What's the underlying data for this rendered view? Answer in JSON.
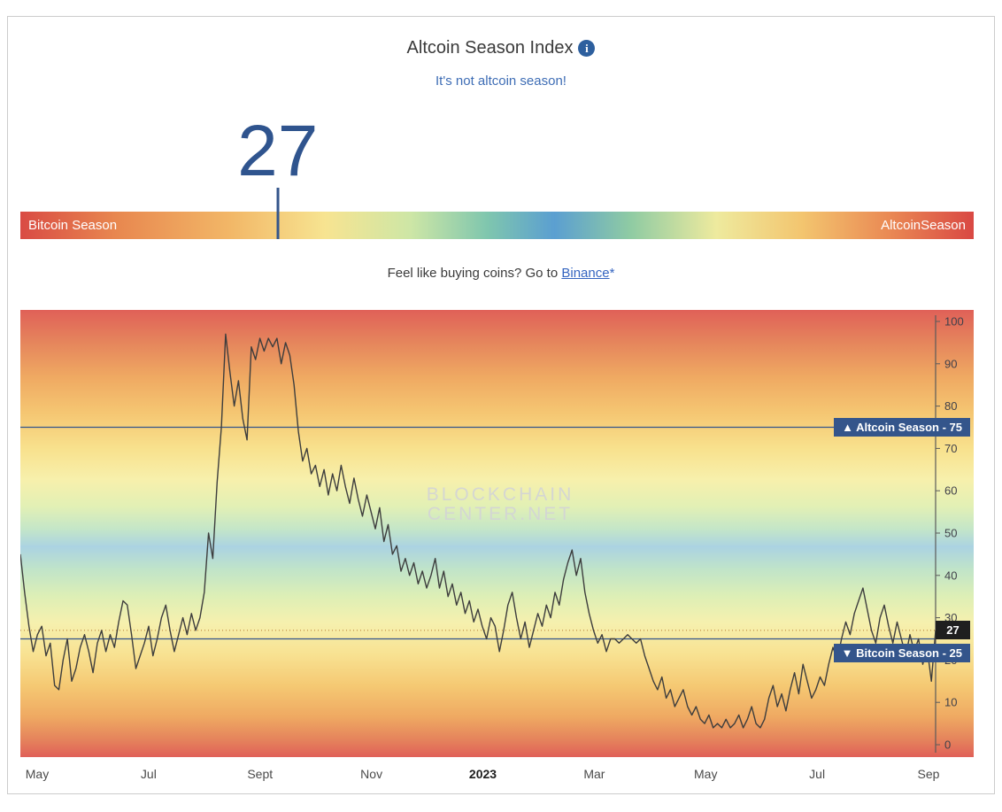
{
  "page": {
    "title": "Altcoin Season Index",
    "info_icon_glyph": "i",
    "subtitle": "It's not altcoin season!",
    "index_value": "27",
    "season_bar": {
      "left_label": "Bitcoin Season",
      "right_label": "AltcoinSeason",
      "marker_percent": 27
    },
    "cta": {
      "prefix": "Feel like buying coins? Go to ",
      "link_label": "Binance",
      "suffix": "*"
    },
    "watermark_line1": "BLOCKCHAIN",
    "watermark_line2": "CENTER.NET"
  },
  "colors": {
    "accent_dark_blue": "#34558b",
    "subtitle_blue": "#3e6db5",
    "link_blue": "#3565c0",
    "current_badge_bg": "#1f1f1f",
    "line_color": "#3d3d3d"
  },
  "chart_data": {
    "type": "line",
    "title": "Altcoin Season Index",
    "ylim": [
      0,
      100
    ],
    "y_ticks": [
      0,
      10,
      20,
      30,
      40,
      50,
      60,
      70,
      80,
      90,
      100
    ],
    "x_tick_labels": [
      "May",
      "Jul",
      "Sept",
      "Nov",
      "2023",
      "Mar",
      "May",
      "Jul",
      "Sep"
    ],
    "grid": false,
    "legend": "none",
    "background": "vertical rainbow gradient: red(100) - orange - yellow - green - blue(~47) - green - yellow - orange - red(0)",
    "thresholds": [
      {
        "value": 75,
        "text": "▲ Altcoin Season - 75"
      },
      {
        "value": 25,
        "text": "▼ Bitcoin Season - 25"
      }
    ],
    "current_value": 27,
    "series": [
      {
        "name": "Altcoin Season Index",
        "x_start": "2022-04-22",
        "x_end": "2023-09-02",
        "sampling": "values estimated from chart, evenly spaced in time between x_start and x_end",
        "values": [
          45,
          36,
          28,
          22,
          26,
          28,
          21,
          24,
          14,
          13,
          20,
          25,
          15,
          18,
          23,
          26,
          22,
          17,
          24,
          27,
          22,
          26,
          23,
          29,
          34,
          33,
          26,
          18,
          21,
          24,
          28,
          21,
          25,
          30,
          33,
          27,
          22,
          26,
          30,
          26,
          31,
          27,
          30,
          36,
          50,
          44,
          62,
          75,
          97,
          88,
          80,
          86,
          77,
          72,
          94,
          91,
          96,
          93,
          96,
          94,
          96,
          90,
          95,
          92,
          85,
          74,
          67,
          70,
          64,
          66,
          61,
          65,
          59,
          64,
          60,
          66,
          61,
          57,
          63,
          58,
          54,
          59,
          55,
          51,
          56,
          48,
          52,
          45,
          47,
          41,
          44,
          40,
          43,
          38,
          41,
          37,
          40,
          44,
          37,
          41,
          35,
          38,
          33,
          36,
          31,
          34,
          29,
          32,
          28,
          25,
          30,
          28,
          22,
          27,
          33,
          36,
          30,
          25,
          29,
          23,
          27,
          31,
          28,
          33,
          30,
          36,
          33,
          39,
          43,
          46,
          40,
          44,
          36,
          31,
          27,
          24,
          26,
          22,
          25,
          25,
          24,
          25,
          26,
          25,
          24,
          25,
          21,
          18,
          15,
          13,
          16,
          11,
          13,
          9,
          11,
          13,
          9,
          7,
          9,
          6,
          5,
          7,
          4,
          5,
          4,
          6,
          4,
          5,
          7,
          4,
          6,
          9,
          5,
          4,
          6,
          11,
          14,
          9,
          12,
          8,
          13,
          17,
          12,
          19,
          15,
          11,
          13,
          16,
          14,
          19,
          23,
          20,
          25,
          29,
          26,
          31,
          34,
          37,
          32,
          27,
          24,
          30,
          33,
          28,
          24,
          29,
          25,
          21,
          26,
          22,
          25,
          19,
          23,
          15,
          27
        ]
      }
    ]
  }
}
